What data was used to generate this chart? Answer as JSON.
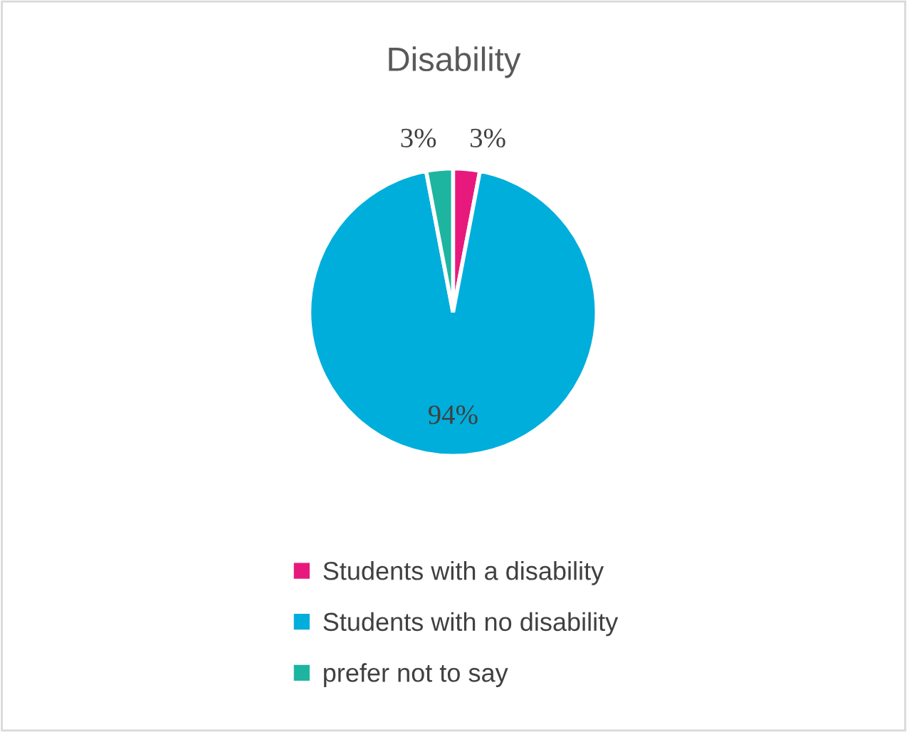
{
  "chart_data": {
    "type": "pie",
    "title": "Disability",
    "categories": [
      "Students with a disability",
      "Students with no disability",
      "prefer not to say"
    ],
    "values": [
      3,
      94,
      3
    ],
    "colors": [
      "#e8197d",
      "#00aedb",
      "#1db5a0"
    ],
    "value_labels": [
      "3%",
      "94%",
      "3%"
    ],
    "legend": "bottom"
  }
}
